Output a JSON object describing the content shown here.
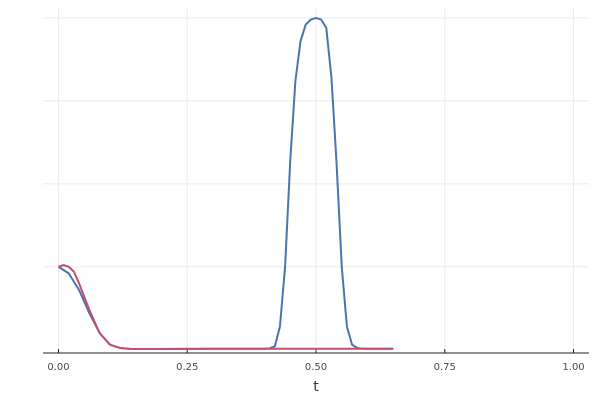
{
  "chart_data": {
    "type": "line",
    "title": "",
    "xlabel": "t",
    "ylabel": "",
    "xlim": [
      -0.03,
      1.03
    ],
    "ylim": [
      -0.01,
      1.03
    ],
    "x_ticks": [
      0.0,
      0.25,
      0.5,
      0.75,
      1.0
    ],
    "x_tick_labels": [
      "0.00",
      "0.25",
      "0.50",
      "0.75",
      "1.00"
    ],
    "y_gridlines": [
      0.25,
      0.5,
      0.75,
      1.0
    ],
    "grid": true,
    "legend": "none",
    "series": [
      {
        "color": "#4c72b0",
        "x": [
          0.0,
          0.02,
          0.04,
          0.06,
          0.08,
          0.1,
          0.12,
          0.14,
          0.2,
          0.3,
          0.4,
          0.41,
          0.42,
          0.43,
          0.44,
          0.45,
          0.46,
          0.47,
          0.48,
          0.49,
          0.5,
          0.51,
          0.52,
          0.53,
          0.54,
          0.55,
          0.56,
          0.57,
          0.58,
          0.59,
          0.6,
          0.65
        ],
        "y": [
          0.25,
          0.23,
          0.18,
          0.11,
          0.05,
          0.015,
          0.005,
          0.002,
          0.002,
          0.003,
          0.003,
          0.004,
          0.01,
          0.07,
          0.25,
          0.57,
          0.81,
          0.93,
          0.98,
          0.995,
          1.0,
          0.995,
          0.97,
          0.82,
          0.56,
          0.25,
          0.07,
          0.015,
          0.005,
          0.003,
          0.003,
          0.003
        ]
      },
      {
        "color": "#c0506e",
        "x": [
          0.0,
          0.01,
          0.02,
          0.03,
          0.04,
          0.06,
          0.08,
          0.1,
          0.12,
          0.14,
          0.2,
          0.3,
          0.4,
          0.5,
          0.6,
          0.65
        ],
        "y": [
          0.25,
          0.255,
          0.25,
          0.235,
          0.2,
          0.12,
          0.05,
          0.015,
          0.005,
          0.002,
          0.002,
          0.003,
          0.003,
          0.003,
          0.003,
          0.003
        ]
      }
    ]
  }
}
